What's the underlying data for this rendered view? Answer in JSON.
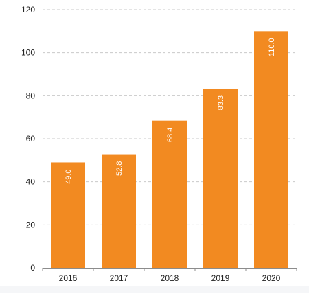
{
  "chart_data": {
    "type": "bar",
    "categories": [
      "2016",
      "2017",
      "2018",
      "2019",
      "2020"
    ],
    "values": [
      49.0,
      52.8,
      68.4,
      83.3,
      110.0
    ],
    "value_labels": [
      "49.0",
      "52.8",
      "68.4",
      "83.3",
      "110.0"
    ],
    "ylim": [
      0,
      120
    ],
    "yticks": [
      0,
      20,
      40,
      60,
      80,
      100,
      120
    ],
    "title": "",
    "xlabel": "",
    "ylabel": "",
    "grid": "horizontal dashed",
    "legend": "none",
    "colors": {
      "bar": "#f28a21",
      "grid": "#c9c9c9",
      "axis": "#8c8c8c",
      "label": "#ffffff",
      "tick_text": "#222222"
    }
  }
}
